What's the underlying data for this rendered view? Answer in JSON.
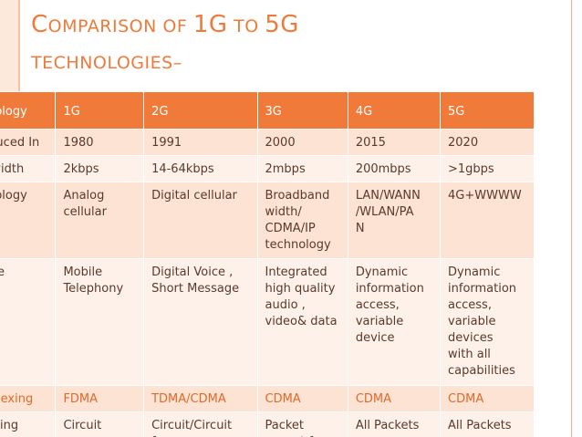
{
  "slide": {
    "title_line1": "Comparison of 1G to 5G",
    "title_line2": "technologies–"
  },
  "table": {
    "headers": [
      "Technology",
      "1G",
      "2G",
      "3G",
      "4G",
      "5G"
    ],
    "rows": [
      {
        "label": "Introduced In",
        "cells": [
          "1980",
          "1991",
          "2000",
          "2015",
          "2020"
        ]
      },
      {
        "label": "Bandwidth",
        "cells": [
          "2kbps",
          "14-64kbps",
          "2mbps",
          "200mbps",
          ">1gbps"
        ]
      },
      {
        "label": "Technology",
        "cells": [
          "Analog\ncellular",
          "Digital cellular",
          "Broadband\nwidth/\nCDMA/IP\ntechnology",
          "LAN/WANN\n/WLAN/PA\nN",
          "4G+WWWW"
        ]
      },
      {
        "label": "Service",
        "cells": [
          "Mobile\nTelephony",
          "Digital Voice ,\nShort Message",
          "Integrated\nhigh quality\naudio ,\nvideo& data",
          "Dynamic\ninformation\naccess,\nvariable\ndevice",
          "Dynamic\ninformation\naccess,\nvariable devices\nwith all\ncapabilities"
        ]
      },
      {
        "label": "Multiplexing",
        "cells": [
          "FDMA",
          "TDMA/CDMA",
          "CDMA",
          "CDMA",
          "CDMA"
        ]
      },
      {
        "label": "Switching",
        "cells": [
          "Circuit",
          "Circuit/Circuit\nfor",
          "Packet\nexcept for",
          "All Packets",
          "All Packets"
        ]
      }
    ]
  }
}
